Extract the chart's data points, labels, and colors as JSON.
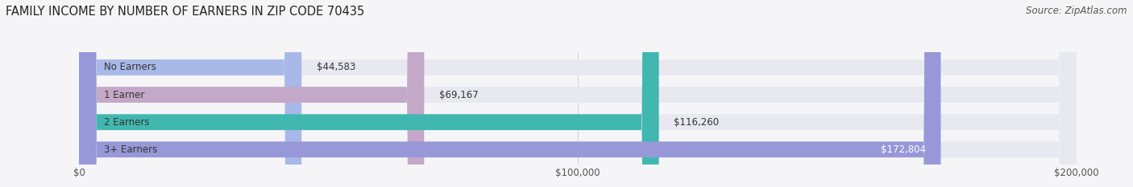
{
  "title": "FAMILY INCOME BY NUMBER OF EARNERS IN ZIP CODE 70435",
  "source": "Source: ZipAtlas.com",
  "categories": [
    "No Earners",
    "1 Earner",
    "2 Earners",
    "3+ Earners"
  ],
  "values": [
    44583,
    69167,
    116260,
    172804
  ],
  "bar_colors": [
    "#a8b8e8",
    "#c4a8c8",
    "#40b8b0",
    "#9898d8"
  ],
  "bar_bg_color": "#e8e8f0",
  "xlim": [
    0,
    200000
  ],
  "value_labels": [
    "$44,583",
    "$69,167",
    "$116,260",
    "$172,804"
  ],
  "xtick_labels": [
    "$0",
    "$100,000",
    "$200,000"
  ],
  "xtick_values": [
    0,
    100000,
    200000
  ],
  "background_color": "#f5f5f8",
  "title_fontsize": 10.5,
  "source_fontsize": 8.5,
  "bar_label_fontsize": 8.5,
  "category_fontsize": 8.5
}
